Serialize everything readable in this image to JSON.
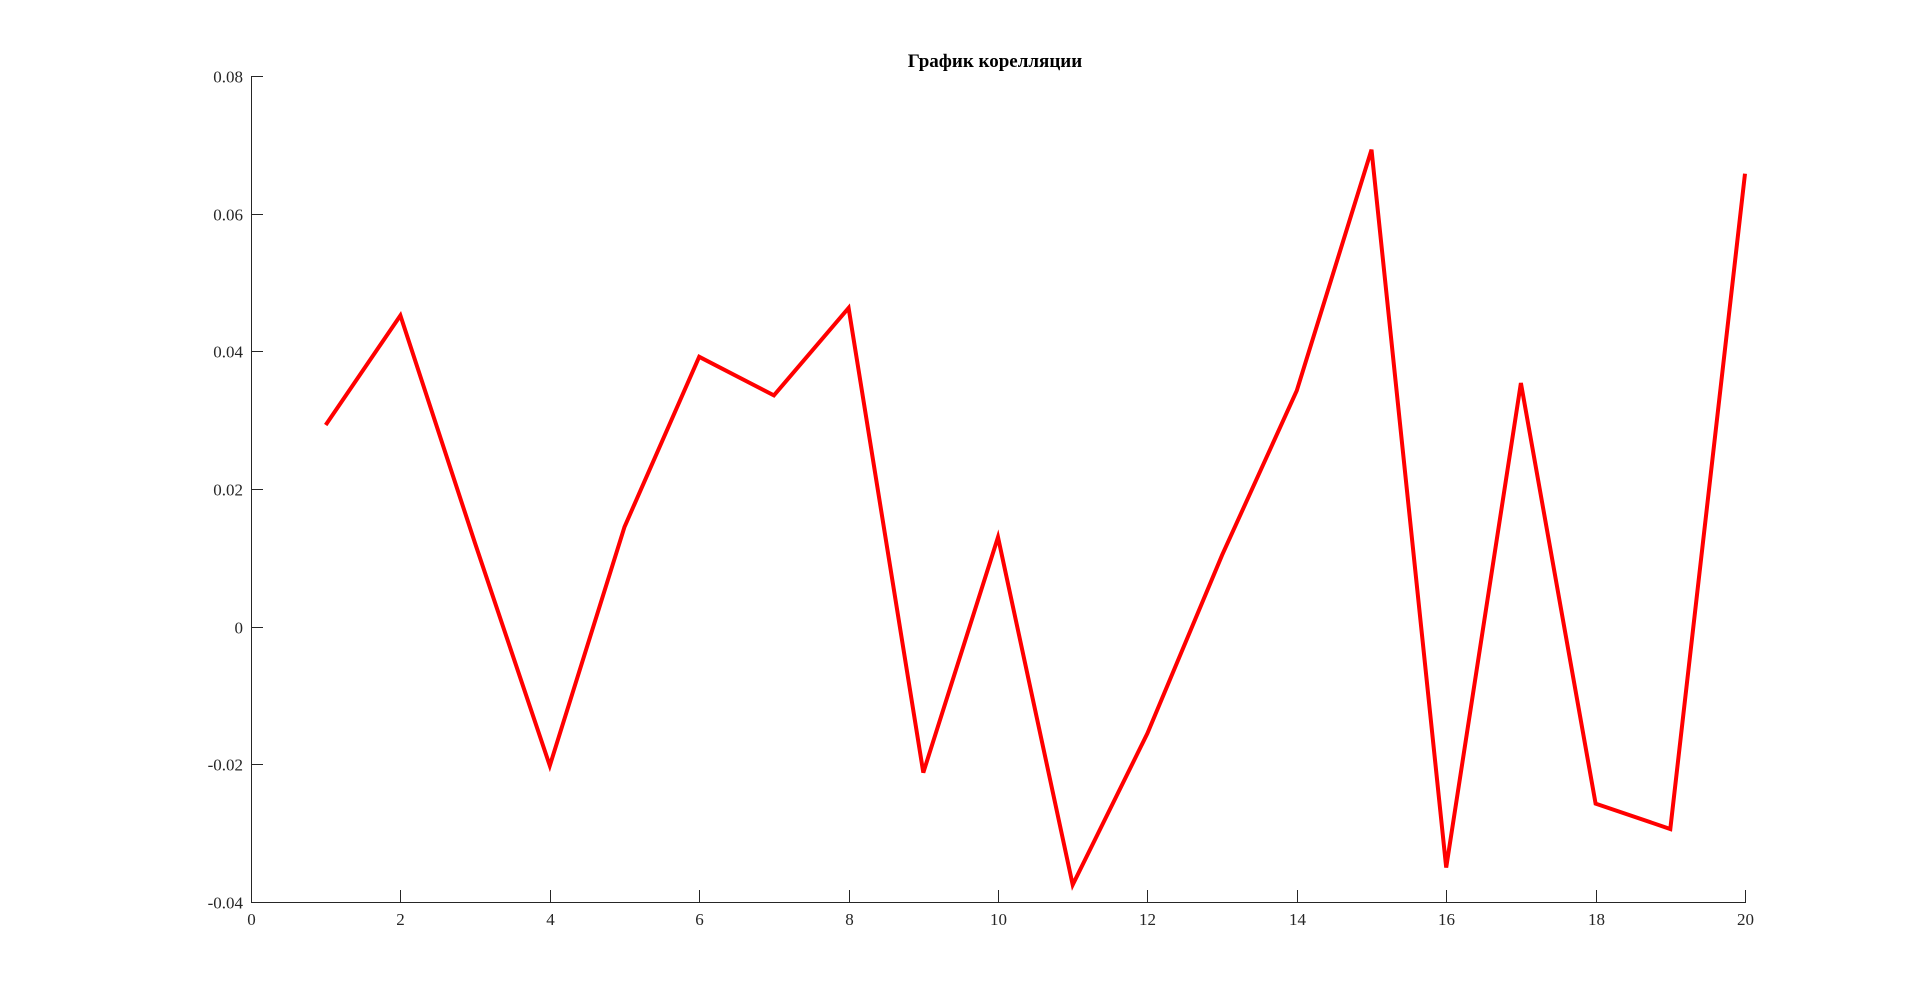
{
  "chart_data": {
    "type": "line",
    "title": "График корелляции",
    "xlabel": "",
    "ylabel": "",
    "xlim": [
      0,
      20
    ],
    "ylim": [
      -0.04,
      0.08
    ],
    "x_ticks": [
      0,
      2,
      4,
      6,
      8,
      10,
      12,
      14,
      16,
      18,
      20
    ],
    "y_ticks": [
      -0.04,
      -0.02,
      0,
      0.02,
      0.04,
      0.06,
      0.08
    ],
    "x_tick_labels": [
      "0",
      "2",
      "4",
      "6",
      "8",
      "10",
      "12",
      "14",
      "16",
      "18",
      "20"
    ],
    "y_tick_labels": [
      "-0.04",
      "-0.02",
      "0",
      "0.02",
      "0.04",
      "0.06",
      "0.08"
    ],
    "grid": false,
    "series": [
      {
        "color": "#ff0000",
        "x": [
          1,
          2,
          3,
          4,
          5,
          6,
          7,
          8,
          9,
          10,
          11,
          12,
          13,
          14,
          15,
          16,
          17,
          18,
          19,
          20
        ],
        "values": [
          0.0293,
          0.0452,
          0.0121,
          -0.0202,
          0.0145,
          0.0392,
          0.0336,
          0.0463,
          -0.0212,
          0.013,
          -0.0375,
          -0.0155,
          0.0104,
          0.0343,
          0.0693,
          -0.035,
          0.0354,
          -0.0257,
          -0.0294,
          0.0658
        ]
      }
    ]
  }
}
